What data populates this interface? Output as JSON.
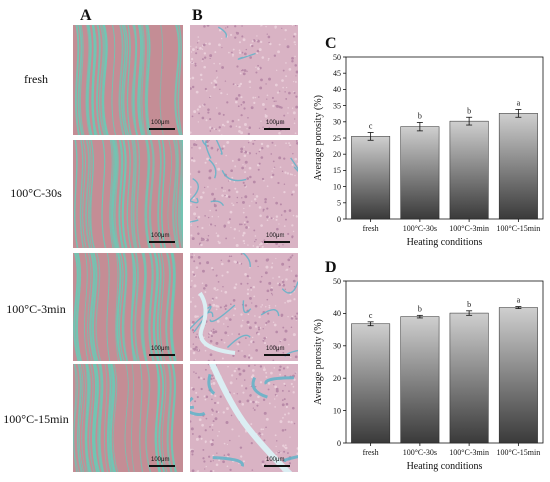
{
  "panel_labels": {
    "a": "A",
    "b": "B",
    "c": "C",
    "d": "D"
  },
  "row_labels": [
    "fresh",
    "100°C-30s",
    "100°C-3min",
    "100°C-15min"
  ],
  "scale_bar_text": "100μm",
  "colors": {
    "masson_base": "#c48d95",
    "masson_fiber": "#6ec7b4",
    "he_base": "#d9b3c4",
    "he_gap": "#5fb3c9",
    "bar_top": "#cfcfcf",
    "bar_bottom": "#3a3a3a"
  },
  "chart_data": [
    {
      "panel": "C",
      "type": "bar",
      "categories": [
        "fresh",
        "100°C-30s",
        "100°C-3min",
        "100°C-15min"
      ],
      "values": [
        25.5,
        28.5,
        30.2,
        32.6
      ],
      "errors": [
        1.2,
        1.3,
        1.2,
        1.2
      ],
      "significance": [
        "c",
        "b",
        "b",
        "a"
      ],
      "xlabel": "Heating conditions",
      "ylabel": "Average porosity (%)",
      "ylim": [
        0,
        50
      ],
      "yticks": [
        0,
        5,
        10,
        15,
        20,
        25,
        30,
        35,
        40,
        45,
        50
      ],
      "grid": false
    },
    {
      "panel": "D",
      "type": "bar",
      "categories": [
        "fresh",
        "100°C-30s",
        "100°C-3min",
        "100°C-15min"
      ],
      "values": [
        36.8,
        39.0,
        40.1,
        41.8
      ],
      "errors": [
        0.6,
        0.4,
        0.7,
        0.3
      ],
      "significance": [
        "c",
        "b",
        "b",
        "a"
      ],
      "xlabel": "Heating conditions",
      "ylabel": "Average porosity (%)",
      "ylim": [
        0,
        50
      ],
      "yticks": [
        0,
        10,
        20,
        30,
        40,
        50
      ],
      "grid": false
    }
  ]
}
